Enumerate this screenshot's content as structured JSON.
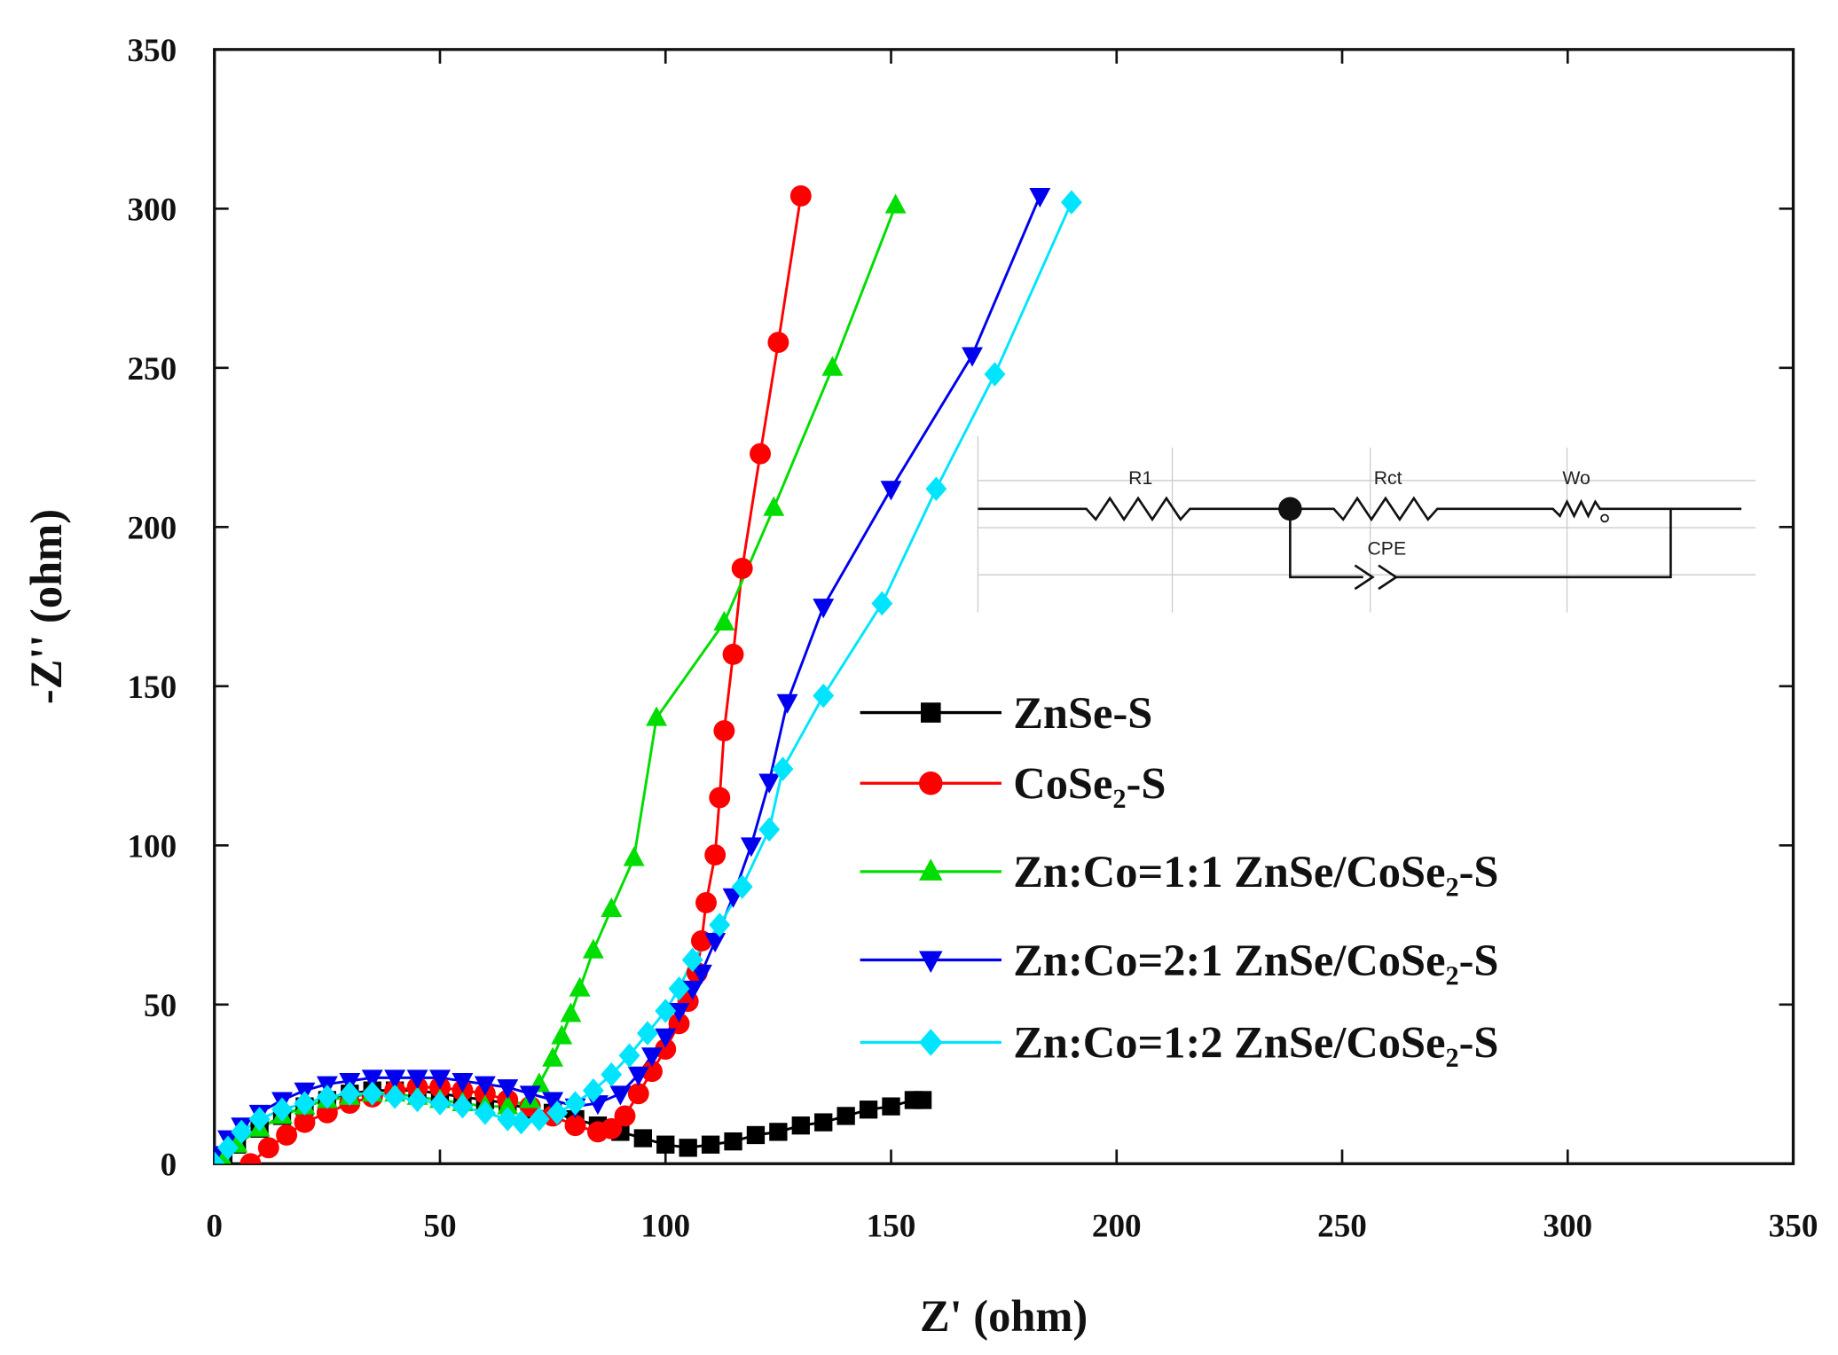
{
  "chart_data": {
    "type": "line",
    "x_label": "Z' (ohm)",
    "y_label": "-Z'' (ohm)",
    "xlim": [
      0,
      350
    ],
    "xticks": [
      0,
      50,
      100,
      150,
      200,
      250,
      300,
      350
    ],
    "ylim": [
      0,
      350
    ],
    "yticks": [
      0,
      50,
      100,
      150,
      200,
      250,
      300,
      350
    ],
    "annotations": [
      "R1",
      "Rct",
      "Wo",
      "CPE"
    ],
    "series": [
      {
        "name": "ZnSe-S",
        "color": "#000000",
        "marker": "square",
        "x": [
          2,
          5,
          10,
          15,
          20,
          25,
          30,
          35,
          40,
          45,
          50,
          55,
          60,
          65,
          70,
          75,
          80,
          85,
          90,
          95,
          100,
          105,
          110,
          115,
          120,
          125,
          130,
          135,
          140,
          145,
          150,
          155,
          157
        ],
        "values": [
          1,
          6,
          11,
          15,
          18,
          20,
          22,
          23,
          23,
          23,
          22,
          21,
          20,
          19,
          17,
          16,
          14,
          12,
          10,
          8,
          6,
          5,
          6,
          7,
          9,
          10,
          12,
          13,
          15,
          17,
          18,
          20,
          20
        ]
      },
      {
        "name": "CoSe₂-S",
        "color": "#ff0000",
        "marker": "circle",
        "x": [
          8,
          12,
          16,
          20,
          25,
          30,
          35,
          40,
          45,
          50,
          55,
          60,
          65,
          70,
          75,
          80,
          85,
          88,
          91,
          94,
          97,
          100,
          103,
          105,
          107,
          108,
          109,
          111,
          112,
          113,
          115,
          117,
          121,
          125,
          130
        ],
        "values": [
          0,
          5,
          9,
          13,
          16,
          19,
          21,
          23,
          24,
          24,
          23,
          22,
          20,
          18,
          15,
          12,
          10,
          11,
          15,
          22,
          29,
          36,
          44,
          51,
          60,
          70,
          82,
          97,
          115,
          136,
          160,
          187,
          223,
          258,
          304
        ]
      },
      {
        "name": "Zn:Co=1:1 ZnSe/CoSe₂-S",
        "color": "#00dd00",
        "marker": "triangle-up",
        "x": [
          2,
          5,
          10,
          15,
          20,
          25,
          30,
          35,
          40,
          45,
          50,
          55,
          60,
          65,
          70,
          72,
          75,
          77,
          79,
          81,
          84,
          88,
          93,
          98,
          113,
          124,
          137,
          151
        ],
        "values": [
          1,
          6,
          11,
          15,
          18,
          20,
          21,
          22,
          22,
          21,
          20,
          19,
          18,
          18,
          20,
          25,
          33,
          40,
          47,
          55,
          67,
          80,
          96,
          140,
          170,
          206,
          250,
          301
        ]
      },
      {
        "name": "Zn:Co=2:1 ZnSe/CoSe₂-S",
        "color": "#0000ee",
        "marker": "triangle-down",
        "x": [
          0,
          3,
          6,
          10,
          15,
          20,
          25,
          30,
          35,
          40,
          45,
          50,
          55,
          60,
          65,
          70,
          75,
          80,
          85,
          90,
          94,
          97,
          100,
          103,
          106,
          108,
          111,
          115,
          119,
          123,
          127,
          135,
          150,
          168,
          183
        ],
        "values": [
          3,
          8,
          12,
          16,
          20,
          23,
          25,
          26,
          27,
          27,
          27,
          27,
          26,
          25,
          24,
          22,
          20,
          18,
          19,
          22,
          28,
          34,
          40,
          48,
          55,
          60,
          70,
          84,
          100,
          120,
          145,
          175,
          212,
          254,
          304
        ]
      },
      {
        "name": "Zn:Co=1:2 ZnSe/CoSe₂-S",
        "color": "#00e5ff",
        "marker": "diamond",
        "x": [
          0,
          3,
          6,
          10,
          15,
          20,
          25,
          30,
          35,
          40,
          45,
          50,
          55,
          60,
          65,
          68,
          72,
          76,
          80,
          84,
          88,
          92,
          96,
          100,
          103,
          106,
          112,
          117,
          123,
          126,
          135,
          148,
          160,
          173,
          190
        ],
        "values": [
          0,
          5,
          10,
          14,
          17,
          19,
          21,
          22,
          22,
          21,
          20,
          19,
          18,
          16,
          14,
          13,
          14,
          16,
          19,
          23,
          28,
          34,
          41,
          48,
          55,
          64,
          75,
          87,
          105,
          124,
          147,
          176,
          212,
          248,
          302
        ]
      }
    ]
  }
}
